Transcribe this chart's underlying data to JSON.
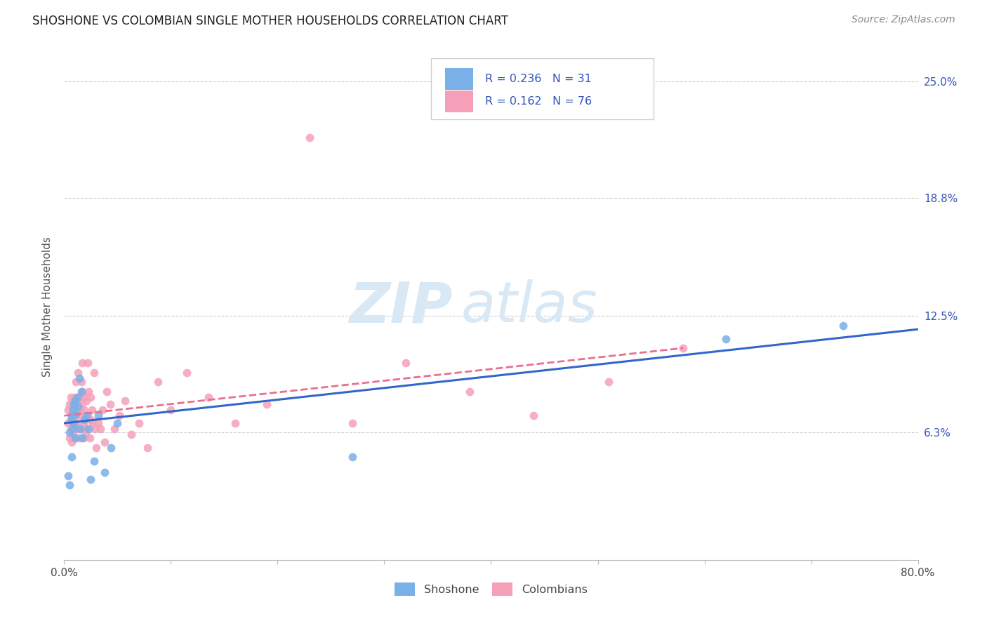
{
  "title": "SHOSHONE VS COLOMBIAN SINGLE MOTHER HOUSEHOLDS CORRELATION CHART",
  "source": "Source: ZipAtlas.com",
  "ylabel": "Single Mother Households",
  "xlim": [
    0.0,
    0.8
  ],
  "ylim": [
    -0.005,
    0.265
  ],
  "xtick_positions": [
    0.0,
    0.1,
    0.2,
    0.3,
    0.4,
    0.5,
    0.6,
    0.7,
    0.8
  ],
  "ytick_positions": [
    0.063,
    0.125,
    0.188,
    0.25
  ],
  "ytick_labels": [
    "6.3%",
    "12.5%",
    "18.8%",
    "25.0%"
  ],
  "background_color": "#ffffff",
  "grid_color": "#cccccc",
  "shoshone_color": "#7ab0e8",
  "colombian_color": "#f5a0b8",
  "shoshone_line_color": "#3366cc",
  "colombian_line_color": "#e87090",
  "shoshone_R": 0.236,
  "shoshone_N": 31,
  "colombian_R": 0.162,
  "colombian_N": 76,
  "legend_text_color": "#3355bb",
  "right_axis_color": "#3355bb",
  "shoshone_x": [
    0.004,
    0.005,
    0.005,
    0.006,
    0.007,
    0.007,
    0.008,
    0.008,
    0.009,
    0.009,
    0.01,
    0.01,
    0.011,
    0.012,
    0.013,
    0.014,
    0.015,
    0.016,
    0.017,
    0.019,
    0.021,
    0.023,
    0.025,
    0.028,
    0.032,
    0.038,
    0.044,
    0.05,
    0.27,
    0.62,
    0.73
  ],
  "shoshone_y": [
    0.04,
    0.035,
    0.063,
    0.07,
    0.072,
    0.05,
    0.065,
    0.075,
    0.068,
    0.078,
    0.06,
    0.08,
    0.073,
    0.082,
    0.077,
    0.092,
    0.065,
    0.085,
    0.06,
    0.07,
    0.072,
    0.065,
    0.038,
    0.048,
    0.072,
    0.042,
    0.055,
    0.068,
    0.05,
    0.113,
    0.12
  ],
  "colombian_x": [
    0.004,
    0.004,
    0.005,
    0.005,
    0.006,
    0.006,
    0.007,
    0.007,
    0.007,
    0.008,
    0.008,
    0.008,
    0.009,
    0.009,
    0.009,
    0.01,
    0.01,
    0.01,
    0.011,
    0.011,
    0.012,
    0.012,
    0.013,
    0.013,
    0.014,
    0.014,
    0.015,
    0.015,
    0.015,
    0.016,
    0.016,
    0.017,
    0.017,
    0.018,
    0.018,
    0.019,
    0.019,
    0.02,
    0.02,
    0.021,
    0.022,
    0.022,
    0.023,
    0.024,
    0.025,
    0.025,
    0.026,
    0.027,
    0.028,
    0.029,
    0.03,
    0.032,
    0.034,
    0.036,
    0.038,
    0.04,
    0.043,
    0.047,
    0.052,
    0.057,
    0.063,
    0.07,
    0.078,
    0.088,
    0.1,
    0.115,
    0.135,
    0.16,
    0.19,
    0.23,
    0.27,
    0.32,
    0.38,
    0.44,
    0.51,
    0.58
  ],
  "colombian_y": [
    0.068,
    0.075,
    0.06,
    0.078,
    0.065,
    0.082,
    0.058,
    0.072,
    0.068,
    0.08,
    0.062,
    0.075,
    0.07,
    0.065,
    0.078,
    0.06,
    0.072,
    0.082,
    0.068,
    0.09,
    0.075,
    0.065,
    0.095,
    0.082,
    0.072,
    0.06,
    0.082,
    0.075,
    0.065,
    0.09,
    0.078,
    0.1,
    0.085,
    0.06,
    0.068,
    0.082,
    0.075,
    0.065,
    0.062,
    0.08,
    0.072,
    0.1,
    0.085,
    0.06,
    0.07,
    0.082,
    0.075,
    0.068,
    0.095,
    0.065,
    0.055,
    0.068,
    0.065,
    0.075,
    0.058,
    0.085,
    0.078,
    0.065,
    0.072,
    0.08,
    0.062,
    0.068,
    0.055,
    0.09,
    0.075,
    0.095,
    0.082,
    0.068,
    0.078,
    0.22,
    0.068,
    0.1,
    0.085,
    0.072,
    0.09,
    0.108
  ],
  "shoshone_trend_x": [
    0.0,
    0.8
  ],
  "shoshone_trend_y": [
    0.068,
    0.118
  ],
  "colombian_trend_x": [
    0.0,
    0.58
  ],
  "colombian_trend_y": [
    0.072,
    0.108
  ]
}
